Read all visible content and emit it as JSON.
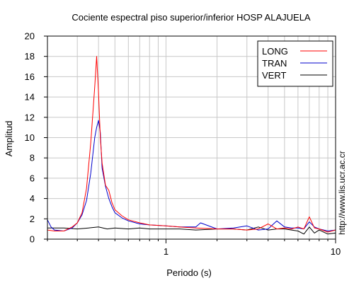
{
  "chart_data": {
    "type": "line",
    "title": "Cociente espectral piso superior/inferior  HOSP ALAJUELA",
    "xlabel": "Periodo (s)",
    "ylabel": "Amplitud",
    "x_scale": "log",
    "xlim": [
      0.2,
      10
    ],
    "ylim": [
      0,
      20
    ],
    "x_tick_labels": [
      {
        "value": 1,
        "label": "1"
      },
      {
        "value": 10,
        "label": "10"
      }
    ],
    "y_ticks": [
      0,
      2,
      4,
      6,
      8,
      10,
      12,
      14,
      16,
      18,
      20
    ],
    "grid": true,
    "legend": {
      "position": "top-right"
    },
    "watermark": "http://www.lis.ucr.ac.cr",
    "series": [
      {
        "name": "LONG",
        "color": "#ff0000",
        "x": [
          0.2,
          0.22,
          0.25,
          0.28,
          0.3,
          0.32,
          0.34,
          0.36,
          0.38,
          0.39,
          0.4,
          0.41,
          0.42,
          0.44,
          0.46,
          0.48,
          0.5,
          0.55,
          0.6,
          0.7,
          0.8,
          1.0,
          1.2,
          1.5,
          2.0,
          2.5,
          3.0,
          3.5,
          4.0,
          4.5,
          5.0,
          5.5,
          6.0,
          6.5,
          7.0,
          7.5,
          8.0,
          9.0,
          10.0
        ],
        "values": [
          0.9,
          0.8,
          0.8,
          1.2,
          1.6,
          2.6,
          5.0,
          9.5,
          15.0,
          18.0,
          14.5,
          10.0,
          7.5,
          5.3,
          4.8,
          3.6,
          2.9,
          2.3,
          1.9,
          1.6,
          1.4,
          1.3,
          1.2,
          1.1,
          1.0,
          1.0,
          0.9,
          1.0,
          1.5,
          1.0,
          1.1,
          1.0,
          1.2,
          1.0,
          2.2,
          1.1,
          1.0,
          0.7,
          0.9
        ]
      },
      {
        "name": "TRAN",
        "color": "#0000cc",
        "x": [
          0.2,
          0.21,
          0.22,
          0.25,
          0.28,
          0.3,
          0.32,
          0.34,
          0.36,
          0.38,
          0.39,
          0.4,
          0.41,
          0.42,
          0.44,
          0.46,
          0.48,
          0.5,
          0.55,
          0.6,
          0.7,
          0.8,
          1.0,
          1.2,
          1.5,
          1.6,
          2.0,
          2.5,
          3.0,
          3.5,
          4.0,
          4.5,
          5.0,
          5.5,
          6.0,
          6.5,
          7.0,
          7.5,
          8.0,
          9.0,
          10.0
        ],
        "values": [
          1.9,
          1.2,
          0.9,
          0.8,
          1.1,
          1.6,
          2.4,
          3.8,
          6.5,
          10.0,
          11.0,
          11.7,
          10.5,
          7.0,
          5.2,
          4.0,
          3.2,
          2.6,
          2.1,
          1.8,
          1.5,
          1.4,
          1.3,
          1.2,
          1.2,
          1.6,
          1.0,
          1.1,
          1.3,
          0.9,
          1.0,
          1.8,
          1.2,
          1.1,
          1.1,
          1.0,
          1.7,
          1.2,
          1.0,
          0.8,
          0.9
        ]
      },
      {
        "name": "VERT",
        "color": "#000000",
        "x": [
          0.2,
          0.22,
          0.25,
          0.3,
          0.35,
          0.4,
          0.45,
          0.5,
          0.6,
          0.7,
          0.8,
          1.0,
          1.2,
          1.5,
          2.0,
          2.5,
          3.0,
          3.5,
          4.0,
          4.5,
          5.0,
          5.5,
          6.0,
          6.5,
          7.0,
          7.5,
          8.0,
          9.0,
          10.0
        ],
        "values": [
          1.1,
          1.1,
          1.1,
          1.0,
          1.1,
          1.2,
          1.0,
          1.1,
          1.0,
          1.1,
          1.0,
          1.0,
          1.0,
          0.9,
          1.0,
          1.0,
          0.9,
          1.2,
          0.9,
          1.0,
          1.0,
          0.9,
          0.8,
          0.5,
          1.2,
          0.6,
          0.9,
          0.5,
          0.6
        ]
      }
    ]
  }
}
